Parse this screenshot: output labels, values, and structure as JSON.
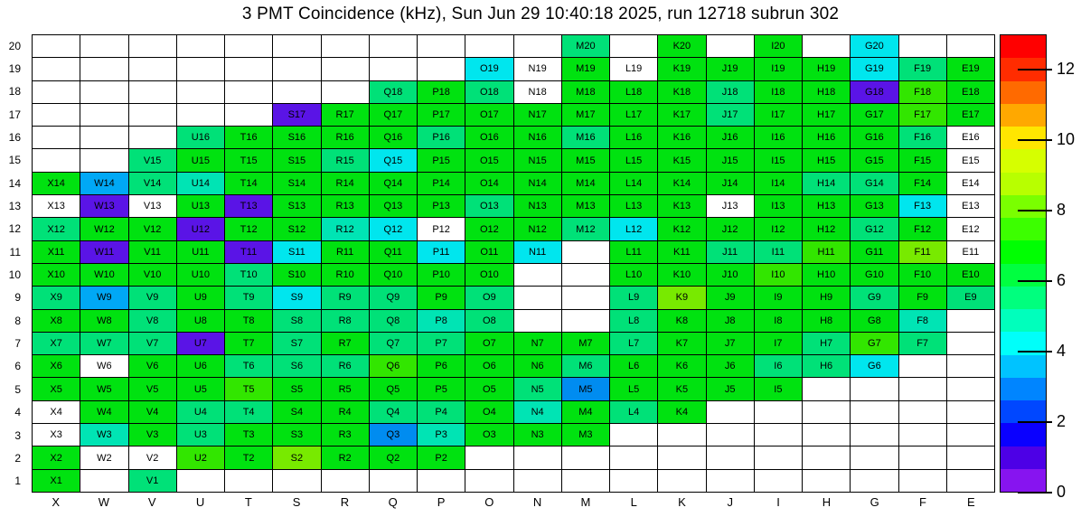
{
  "title": "3 PMT Coincidence (kHz), Sun Jun 29 10:40:18 2025, run 12718 subrun 302",
  "chart_data": {
    "type": "heatmap",
    "x_categories": [
      "X",
      "W",
      "V",
      "U",
      "T",
      "S",
      "R",
      "Q",
      "P",
      "O",
      "N",
      "M",
      "L",
      "K",
      "J",
      "I",
      "H",
      "G",
      "F",
      "E"
    ],
    "y_categories": [
      "20",
      "19",
      "18",
      "17",
      "16",
      "15",
      "14",
      "13",
      "12",
      "11",
      "10",
      "9",
      "8",
      "7",
      "6",
      "5",
      "4",
      "3",
      "2",
      "1"
    ],
    "palette": {
      "w": {
        "hex": "#ffffff",
        "approx_kHz": 0
      },
      "pu": {
        "hex": "#5a14e6",
        "approx_kHz": 0.7
      },
      "db": {
        "hex": "#008cf0",
        "approx_kHz": 3.0
      },
      "sb": {
        "hex": "#00a8f5",
        "approx_kHz": 3.6
      },
      "cy": {
        "hex": "#00e6ee",
        "approx_kHz": 4.2
      },
      "tq": {
        "hex": "#00e4b4",
        "approx_kHz": 4.9
      },
      "sg": {
        "hex": "#00e178",
        "approx_kHz": 5.6
      },
      "g": {
        "hex": "#00e210",
        "approx_kHz": 6.9
      },
      "bg": {
        "hex": "#32e600",
        "approx_kHz": 7.9
      },
      "ch": {
        "hex": "#78ea00",
        "approx_kHz": 8.7
      }
    },
    "rows": [
      [
        "",
        "",
        "",
        "",
        "",
        "",
        "",
        "",
        "",
        "",
        "",
        "M20:sg",
        "",
        "K20:g",
        "",
        "I20:g",
        "",
        "G20:cy",
        "",
        ""
      ],
      [
        "",
        "",
        "",
        "",
        "",
        "",
        "",
        "",
        "",
        "O19:cy",
        "N19:w",
        "M19:g",
        "L19:w",
        "K19:g",
        "J19:g",
        "I19:g",
        "H19:g",
        "G19:cy",
        "F19:sg",
        "E19:g"
      ],
      [
        "",
        "",
        "",
        "",
        "",
        "",
        "",
        "Q18:sg",
        "P18:g",
        "O18:sg",
        "N18:w",
        "M18:g",
        "L18:g",
        "K18:g",
        "J18:sg",
        "I18:g",
        "H18:g",
        "G18:pu",
        "F18:bg",
        "E18:g"
      ],
      [
        "",
        "",
        "",
        "",
        "",
        "S17:pu",
        "R17:g",
        "Q17:g",
        "P17:g",
        "O17:g",
        "N17:g",
        "M17:g",
        "L17:g",
        "K17:g",
        "J17:sg",
        "I17:g",
        "H17:g",
        "G17:g",
        "F17:bg",
        "E17:g"
      ],
      [
        "",
        "",
        "",
        "U16:sg",
        "T16:g",
        "S16:g",
        "R16:g",
        "Q16:g",
        "P16:sg",
        "O16:g",
        "N16:g",
        "M16:sg",
        "L16:g",
        "K16:g",
        "J16:g",
        "I16:g",
        "H16:g",
        "G16:g",
        "F16:sg",
        "E16:w"
      ],
      [
        "",
        "",
        "V15:sg",
        "U15:g",
        "T15:g",
        "S15:g",
        "R15:sg",
        "Q15:cy",
        "P15:g",
        "O15:g",
        "N15:g",
        "M15:g",
        "L15:g",
        "K15:g",
        "J15:g",
        "I15:g",
        "H15:g",
        "G15:g",
        "F15:g",
        "E15:w"
      ],
      [
        "X14:g",
        "W14:sb",
        "V14:sg",
        "U14:tq",
        "T14:g",
        "S14:g",
        "R14:g",
        "Q14:g",
        "P14:g",
        "O14:g",
        "N14:g",
        "M14:g",
        "L14:g",
        "K14:g",
        "J14:g",
        "I14:g",
        "H14:sg",
        "G14:sg",
        "F14:g",
        "E14:w"
      ],
      [
        "X13:w",
        "W13:pu",
        "V13:w",
        "U13:g",
        "T13:pu",
        "S13:g",
        "R13:g",
        "Q13:g",
        "P13:g",
        "O13:sg",
        "N13:g",
        "M13:g",
        "L13:g",
        "K13:g",
        "J13:w",
        "I13:g",
        "H13:g",
        "G13:g",
        "F13:cy",
        "E13:w"
      ],
      [
        "X12:sg",
        "W12:g",
        "V12:g",
        "U12:pu",
        "T12:g",
        "S12:g",
        "R12:tq",
        "Q12:cy",
        "P12:w",
        "O12:g",
        "N12:g",
        "M12:sg",
        "L12:cy",
        "K12:g",
        "J12:g",
        "I12:g",
        "H12:g",
        "G12:sg",
        "F12:g",
        "E12:w"
      ],
      [
        "X11:g",
        "W11:pu",
        "V11:g",
        "U11:g",
        "T11:pu",
        "S11:cy",
        "R11:g",
        "Q11:g",
        "P11:cy",
        "O11:g",
        "N11:cy",
        "",
        "L11:g",
        "K11:g",
        "J11:sg",
        "I11:sg",
        "H11:bg",
        "G11:g",
        "F11:ch",
        "E11:w"
      ],
      [
        "X10:g",
        "W10:g",
        "V10:g",
        "U10:g",
        "T10:sg",
        "S10:g",
        "R10:g",
        "Q10:g",
        "P10:g",
        "O10:g",
        "",
        "",
        "L10:g",
        "K10:g",
        "J10:g",
        "I10:bg",
        "H10:g",
        "G10:g",
        "F10:g",
        "E10:g"
      ],
      [
        "X9:sg",
        "W9:sb",
        "V9:sg",
        "U9:g",
        "T9:sg",
        "S9:cy",
        "R9:sg",
        "Q9:sg",
        "P9:g",
        "O9:sg",
        "",
        "",
        "L9:sg",
        "K9:ch",
        "J9:g",
        "I9:g",
        "H9:g",
        "G9:sg",
        "F9:g",
        "E9:sg"
      ],
      [
        "X8:g",
        "W8:g",
        "V8:sg",
        "U8:g",
        "T8:g",
        "S8:sg",
        "R8:sg",
        "Q8:sg",
        "P8:tq",
        "O8:sg",
        "",
        "",
        "L8:sg",
        "K8:g",
        "J8:g",
        "I8:g",
        "H8:g",
        "G8:g",
        "F8:tq",
        ""
      ],
      [
        "X7:sg",
        "W7:sg",
        "V7:sg",
        "U7:pu",
        "T7:g",
        "S7:sg",
        "R7:g",
        "Q7:sg",
        "P7:sg",
        "O7:g",
        "N7:g",
        "M7:g",
        "L7:sg",
        "K7:g",
        "J7:g",
        "I7:g",
        "H7:sg",
        "G7:bg",
        "F7:sg",
        ""
      ],
      [
        "X6:g",
        "W6:w",
        "V6:g",
        "U6:g",
        "T6:sg",
        "S6:sg",
        "R6:sg",
        "Q6:bg",
        "P6:g",
        "O6:g",
        "N6:g",
        "M6:sg",
        "L6:g",
        "K6:g",
        "J6:g",
        "I6:sg",
        "H6:sg",
        "G6:cy",
        "",
        ""
      ],
      [
        "X5:g",
        "W5:g",
        "V5:g",
        "U5:g",
        "T5:bg",
        "S5:g",
        "R5:g",
        "Q5:g",
        "P5:g",
        "O5:g",
        "N5:sg",
        "M5:db",
        "L5:g",
        "K5:g",
        "J5:g",
        "I5:g",
        "",
        "",
        "",
        ""
      ],
      [
        "X4:w",
        "W4:g",
        "V4:g",
        "U4:sg",
        "T4:sg",
        "S4:g",
        "R4:g",
        "Q4:sg",
        "P4:sg",
        "O4:g",
        "N4:tq",
        "M4:g",
        "L4:sg",
        "K4:g",
        "",
        "",
        "",
        "",
        "",
        ""
      ],
      [
        "X3:w",
        "W3:tq",
        "V3:g",
        "U3:sg",
        "T3:g",
        "S3:g",
        "R3:g",
        "Q3:db",
        "P3:tq",
        "O3:g",
        "N3:g",
        "M3:g",
        "",
        "",
        "",
        "",
        "",
        "",
        "",
        ""
      ],
      [
        "X2:g",
        "W2:w",
        "V2:w",
        "U2:bg",
        "T2:g",
        "S2:ch",
        "R2:g",
        "Q2:g",
        "P2:g",
        "",
        "",
        "",
        "",
        "",
        "",
        "",
        "",
        "",
        "",
        ""
      ],
      [
        "X1:g",
        "",
        "V1:sg",
        "",
        "",
        "",
        "",
        "",
        "",
        "",
        "",
        "",
        "",
        "",
        "",
        "",
        "",
        "",
        "",
        ""
      ]
    ],
    "colorbar": {
      "min": 0,
      "max": 13,
      "segments_bottom_to_top": [
        "#8714f0",
        "#4d00e6",
        "#0a00ff",
        "#0047ff",
        "#0085ff",
        "#00c3ff",
        "#00fffa",
        "#00ffbc",
        "#00ff7e",
        "#00ff40",
        "#00ff02",
        "#3cff00",
        "#7aff00",
        "#b8ff00",
        "#d6ff00",
        "#ffe600",
        "#ffa800",
        "#ff6a00",
        "#ff2c00",
        "#ff0000"
      ],
      "ticks": [
        {
          "label": "12",
          "value": 12
        },
        {
          "label": "10",
          "value": 10
        },
        {
          "label": "8",
          "value": 8
        },
        {
          "label": "6",
          "value": 6
        },
        {
          "label": "4",
          "value": 4
        },
        {
          "label": "2",
          "value": 2
        },
        {
          "label": "0",
          "value": 0
        }
      ]
    }
  }
}
